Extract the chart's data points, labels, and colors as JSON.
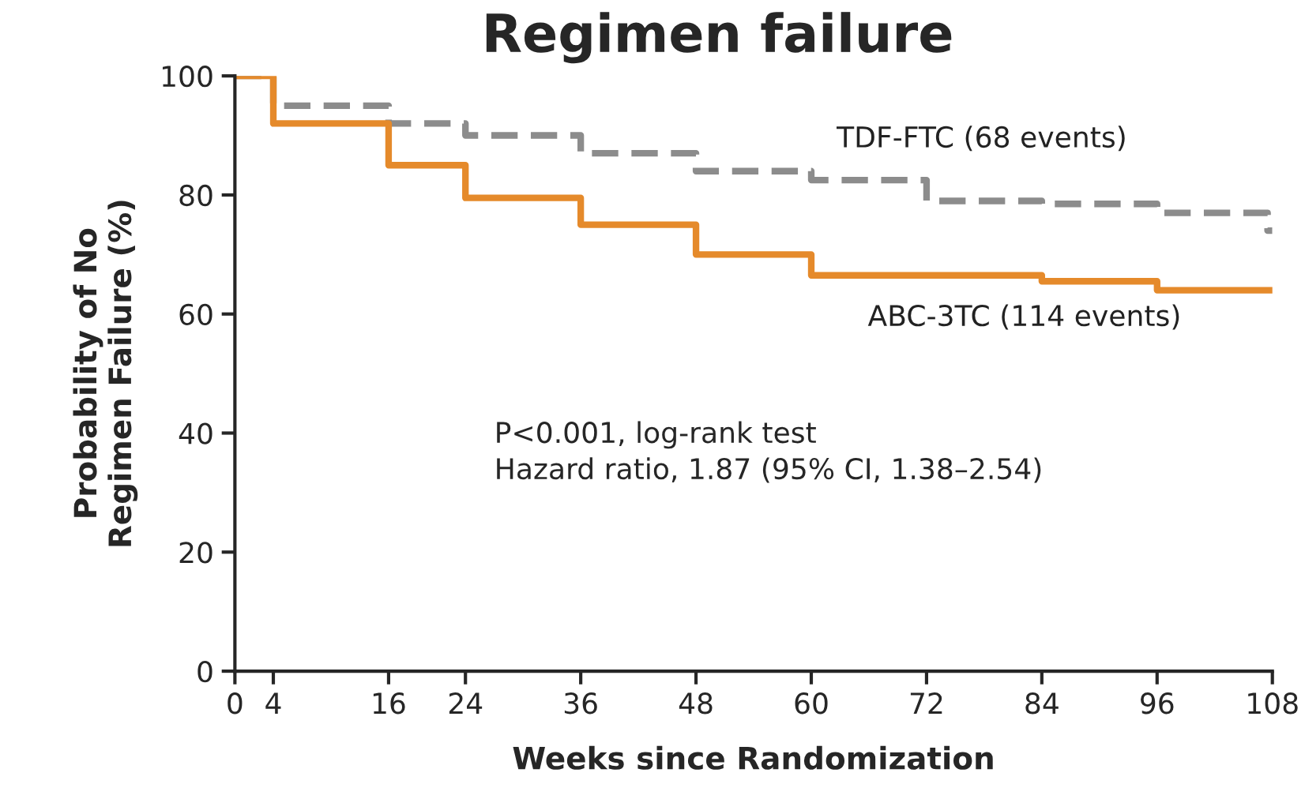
{
  "chart_data": {
    "type": "step",
    "title": "Regimen failure",
    "xlabel": "Weeks since Randomization",
    "ylabel": "Probability of No\nRegimen Failure (%)",
    "xlim": [
      0,
      108
    ],
    "ylim": [
      0,
      100
    ],
    "xticks": [
      0,
      4,
      16,
      24,
      36,
      48,
      60,
      72,
      84,
      96,
      108
    ],
    "yticks": [
      0,
      20,
      40,
      60,
      80,
      100
    ],
    "series": [
      {
        "name": "TDF-FTC (68 events)",
        "color": "#8c8c8c",
        "line_style": "dashed",
        "x": [
          0,
          4,
          16,
          24,
          36,
          48,
          60,
          72,
          84,
          96,
          107.5,
          108
        ],
        "values": [
          100,
          95,
          92,
          90,
          87,
          84,
          82.5,
          79,
          78.5,
          77,
          74,
          74
        ]
      },
      {
        "name": "ABC-3TC (114 events)",
        "color": "#e58a2b",
        "line_style": "solid",
        "x": [
          0,
          4,
          16,
          24,
          36,
          48,
          60,
          84,
          96,
          108
        ],
        "values": [
          100,
          92,
          85,
          79.5,
          75,
          70,
          66.5,
          65.5,
          64,
          64
        ]
      }
    ],
    "annotations": [
      "P<0.001, log-rank test\nHazard ratio, 1.87 (95% CI, 1.38–2.54)"
    ],
    "legend": false,
    "grid": false
  }
}
